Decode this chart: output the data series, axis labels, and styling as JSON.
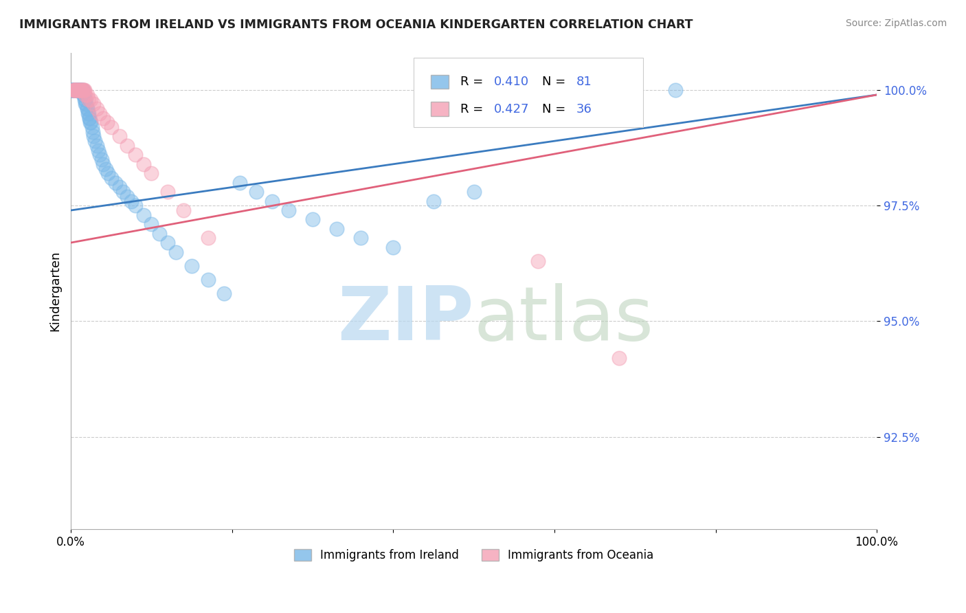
{
  "title": "IMMIGRANTS FROM IRELAND VS IMMIGRANTS FROM OCEANIA KINDERGARTEN CORRELATION CHART",
  "source": "Source: ZipAtlas.com",
  "ylabel": "Kindergarten",
  "legend_ireland": "Immigrants from Ireland",
  "legend_oceania": "Immigrants from Oceania",
  "R_ireland": 0.41,
  "N_ireland": 81,
  "R_oceania": 0.427,
  "N_oceania": 36,
  "color_ireland": "#7ab8e8",
  "color_oceania": "#f4a0b5",
  "line_color_ireland": "#3a7bbf",
  "line_color_oceania": "#e0607a",
  "legend_text_color": "#4169e1",
  "xlim": [
    0.0,
    1.0
  ],
  "ylim": [
    0.905,
    1.008
  ],
  "yticks": [
    0.925,
    0.95,
    0.975,
    1.0
  ],
  "ytick_labels": [
    "92.5%",
    "95.0%",
    "97.5%",
    "100.0%"
  ],
  "ireland_x": [
    0.001,
    0.002,
    0.002,
    0.003,
    0.003,
    0.003,
    0.004,
    0.004,
    0.005,
    0.005,
    0.005,
    0.006,
    0.006,
    0.006,
    0.007,
    0.007,
    0.008,
    0.008,
    0.009,
    0.01,
    0.01,
    0.011,
    0.011,
    0.012,
    0.012,
    0.013,
    0.013,
    0.014,
    0.015,
    0.015,
    0.016,
    0.016,
    0.017,
    0.018,
    0.018,
    0.019,
    0.02,
    0.02,
    0.021,
    0.022,
    0.023,
    0.023,
    0.024,
    0.025,
    0.026,
    0.027,
    0.028,
    0.03,
    0.032,
    0.034,
    0.036,
    0.038,
    0.04,
    0.043,
    0.046,
    0.05,
    0.055,
    0.06,
    0.065,
    0.07,
    0.075,
    0.08,
    0.09,
    0.1,
    0.11,
    0.12,
    0.13,
    0.15,
    0.17,
    0.19,
    0.21,
    0.23,
    0.25,
    0.27,
    0.3,
    0.33,
    0.36,
    0.4,
    0.45,
    0.5,
    0.75
  ],
  "ireland_y": [
    1.0,
    1.0,
    1.0,
    1.0,
    1.0,
    1.0,
    1.0,
    1.0,
    1.0,
    1.0,
    1.0,
    1.0,
    1.0,
    1.0,
    1.0,
    1.0,
    1.0,
    1.0,
    1.0,
    1.0,
    1.0,
    1.0,
    1.0,
    1.0,
    1.0,
    1.0,
    1.0,
    1.0,
    1.0,
    0.999,
    0.999,
    0.999,
    0.998,
    0.998,
    0.997,
    0.997,
    0.996,
    0.996,
    0.995,
    0.995,
    0.994,
    0.994,
    0.993,
    0.993,
    0.992,
    0.991,
    0.99,
    0.989,
    0.988,
    0.987,
    0.986,
    0.985,
    0.984,
    0.983,
    0.982,
    0.981,
    0.98,
    0.979,
    0.978,
    0.977,
    0.976,
    0.975,
    0.973,
    0.971,
    0.969,
    0.967,
    0.965,
    0.962,
    0.959,
    0.956,
    0.98,
    0.978,
    0.976,
    0.974,
    0.972,
    0.97,
    0.968,
    0.966,
    0.976,
    0.978,
    1.0
  ],
  "oceania_x": [
    0.003,
    0.004,
    0.004,
    0.005,
    0.006,
    0.007,
    0.008,
    0.009,
    0.01,
    0.011,
    0.012,
    0.013,
    0.014,
    0.015,
    0.016,
    0.017,
    0.018,
    0.02,
    0.022,
    0.025,
    0.028,
    0.032,
    0.036,
    0.04,
    0.045,
    0.05,
    0.06,
    0.07,
    0.08,
    0.09,
    0.1,
    0.12,
    0.14,
    0.17,
    0.58,
    0.68
  ],
  "oceania_y": [
    1.0,
    1.0,
    1.0,
    1.0,
    1.0,
    1.0,
    1.0,
    1.0,
    1.0,
    1.0,
    1.0,
    1.0,
    1.0,
    1.0,
    1.0,
    1.0,
    0.999,
    0.999,
    0.998,
    0.998,
    0.997,
    0.996,
    0.995,
    0.994,
    0.993,
    0.992,
    0.99,
    0.988,
    0.986,
    0.984,
    0.982,
    0.978,
    0.974,
    0.968,
    0.963,
    0.942
  ]
}
